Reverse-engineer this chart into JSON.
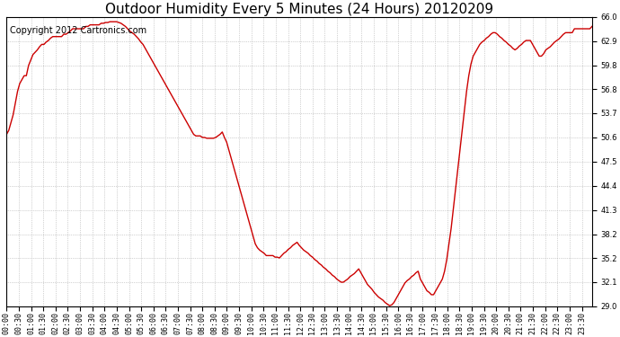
{
  "title": "Outdoor Humidity Every 5 Minutes (24 Hours) 20120209",
  "copyright_text": "Copyright 2012 Cartronics.com",
  "line_color": "#cc0000",
  "bg_color": "#ffffff",
  "plot_bg_color": "#ffffff",
  "grid_color": "#aaaaaa",
  "ylim": [
    29.0,
    66.0
  ],
  "yticks": [
    29.0,
    32.1,
    35.2,
    38.2,
    41.3,
    44.4,
    47.5,
    50.6,
    53.7,
    56.8,
    59.8,
    62.9,
    66.0
  ],
  "title_fontsize": 11,
  "copyright_fontsize": 7,
  "tick_fontsize": 6,
  "y_data": [
    51.0,
    51.5,
    52.5,
    53.5,
    55.0,
    56.5,
    57.5,
    58.0,
    58.5,
    58.5,
    59.8,
    60.5,
    61.2,
    61.5,
    61.8,
    62.2,
    62.5,
    62.5,
    62.8,
    63.0,
    63.3,
    63.5,
    63.5,
    63.5,
    63.5,
    63.5,
    63.8,
    63.8,
    64.0,
    64.2,
    64.5,
    64.5,
    64.5,
    64.5,
    64.5,
    64.5,
    64.8,
    64.8,
    65.0,
    65.0,
    65.0,
    65.0,
    65.0,
    65.2,
    65.2,
    65.3,
    65.3,
    65.4,
    65.4,
    65.4,
    65.4,
    65.3,
    65.2,
    65.0,
    64.8,
    64.5,
    64.2,
    64.0,
    63.8,
    63.5,
    63.2,
    62.8,
    62.5,
    62.0,
    61.5,
    61.0,
    60.5,
    60.0,
    59.5,
    59.0,
    58.5,
    58.0,
    57.5,
    57.0,
    56.5,
    56.0,
    55.5,
    55.0,
    54.5,
    54.0,
    53.5,
    53.0,
    52.5,
    52.0,
    51.5,
    51.0,
    50.8,
    50.8,
    50.8,
    50.6,
    50.6,
    50.5,
    50.5,
    50.5,
    50.5,
    50.6,
    50.8,
    51.0,
    51.3,
    50.6,
    50.0,
    49.0,
    48.0,
    47.0,
    46.0,
    45.0,
    44.0,
    43.0,
    42.0,
    41.0,
    40.0,
    39.0,
    38.0,
    37.0,
    36.5,
    36.2,
    36.0,
    35.8,
    35.5,
    35.5,
    35.5,
    35.5,
    35.3,
    35.3,
    35.2,
    35.5,
    35.8,
    36.0,
    36.3,
    36.5,
    36.8,
    37.0,
    37.2,
    36.8,
    36.5,
    36.2,
    36.0,
    35.8,
    35.5,
    35.3,
    35.0,
    34.8,
    34.5,
    34.3,
    34.0,
    33.8,
    33.5,
    33.3,
    33.0,
    32.8,
    32.5,
    32.3,
    32.1,
    32.1,
    32.3,
    32.5,
    32.8,
    33.0,
    33.2,
    33.5,
    33.8,
    33.3,
    32.8,
    32.3,
    31.8,
    31.5,
    31.2,
    30.8,
    30.5,
    30.2,
    30.0,
    29.8,
    29.5,
    29.3,
    29.1,
    29.2,
    29.5,
    30.0,
    30.5,
    31.0,
    31.5,
    32.0,
    32.3,
    32.5,
    32.8,
    33.0,
    33.3,
    33.5,
    32.5,
    32.0,
    31.5,
    31.0,
    30.8,
    30.5,
    30.5,
    31.0,
    31.5,
    32.0,
    32.5,
    33.5,
    35.0,
    37.0,
    39.0,
    41.5,
    44.0,
    46.5,
    49.0,
    51.5,
    54.0,
    56.5,
    58.5,
    60.0,
    61.0,
    61.5,
    62.0,
    62.5,
    62.8,
    63.0,
    63.3,
    63.5,
    63.8,
    64.0,
    64.0,
    63.8,
    63.5,
    63.3,
    63.0,
    62.8,
    62.5,
    62.3,
    62.0,
    61.8,
    62.0,
    62.3,
    62.5,
    62.8,
    63.0,
    63.0,
    63.0,
    62.5,
    62.0,
    61.5,
    61.0,
    61.0,
    61.3,
    61.8,
    62.0,
    62.2,
    62.5,
    62.8,
    63.0,
    63.2,
    63.5,
    63.8,
    64.0,
    64.0,
    64.0,
    64.0,
    64.5,
    64.5,
    64.5,
    64.5,
    64.5,
    64.5,
    64.5,
    64.5,
    64.8
  ],
  "x_tick_every_n": 6
}
